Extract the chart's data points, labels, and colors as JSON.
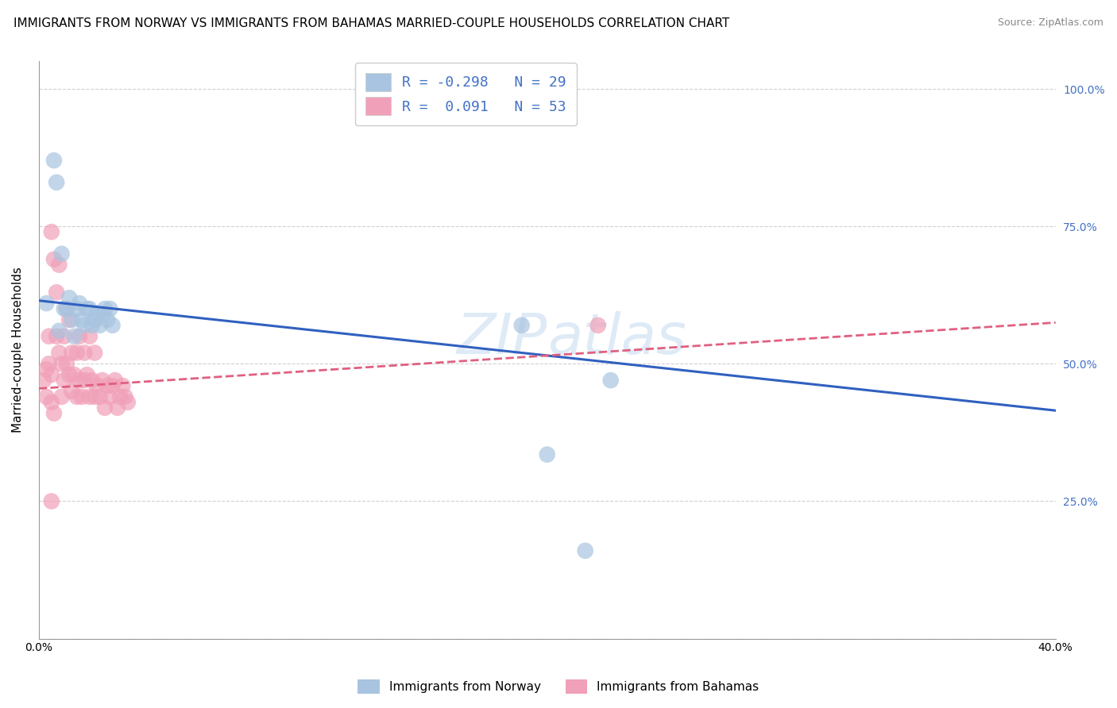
{
  "title": "IMMIGRANTS FROM NORWAY VS IMMIGRANTS FROM BAHAMAS MARRIED-COUPLE HOUSEHOLDS CORRELATION CHART",
  "source": "Source: ZipAtlas.com",
  "ylabel": "Married-couple Households",
  "xlim": [
    0.0,
    0.4
  ],
  "ylim": [
    0.0,
    1.05
  ],
  "norway_color": "#a8c4e0",
  "bahamas_color": "#f0a0b8",
  "norway_line_color": "#3060c0",
  "bahamas_line_color": "#e06080",
  "norway_R": -0.298,
  "norway_N": 29,
  "bahamas_R": 0.091,
  "bahamas_N": 53,
  "norway_scatter_x": [
    0.003,
    0.006,
    0.007,
    0.008,
    0.009,
    0.01,
    0.011,
    0.012,
    0.013,
    0.014,
    0.015,
    0.016,
    0.017,
    0.018,
    0.019,
    0.02,
    0.021,
    0.022,
    0.023,
    0.024,
    0.025,
    0.026,
    0.027,
    0.028,
    0.029,
    0.19,
    0.2,
    0.215,
    0.225
  ],
  "norway_scatter_y": [
    0.61,
    0.87,
    0.83,
    0.56,
    0.7,
    0.6,
    0.6,
    0.62,
    0.58,
    0.55,
    0.6,
    0.61,
    0.58,
    0.57,
    0.6,
    0.6,
    0.57,
    0.58,
    0.59,
    0.57,
    0.59,
    0.6,
    0.58,
    0.6,
    0.57,
    0.57,
    0.335,
    0.16,
    0.47
  ],
  "bahamas_scatter_x": [
    0.002,
    0.003,
    0.003,
    0.004,
    0.004,
    0.005,
    0.005,
    0.005,
    0.006,
    0.006,
    0.007,
    0.007,
    0.008,
    0.008,
    0.009,
    0.009,
    0.01,
    0.01,
    0.011,
    0.011,
    0.012,
    0.012,
    0.013,
    0.013,
    0.014,
    0.015,
    0.015,
    0.016,
    0.016,
    0.017,
    0.018,
    0.018,
    0.019,
    0.02,
    0.02,
    0.021,
    0.022,
    0.022,
    0.023,
    0.024,
    0.025,
    0.026,
    0.027,
    0.028,
    0.029,
    0.03,
    0.031,
    0.032,
    0.033,
    0.034,
    0.035,
    0.22,
    0.005
  ],
  "bahamas_scatter_y": [
    0.47,
    0.44,
    0.49,
    0.5,
    0.55,
    0.43,
    0.48,
    0.74,
    0.41,
    0.69,
    0.55,
    0.63,
    0.52,
    0.68,
    0.44,
    0.5,
    0.47,
    0.55,
    0.5,
    0.6,
    0.48,
    0.58,
    0.45,
    0.52,
    0.48,
    0.44,
    0.52,
    0.47,
    0.55,
    0.44,
    0.47,
    0.52,
    0.48,
    0.44,
    0.55,
    0.47,
    0.44,
    0.52,
    0.46,
    0.44,
    0.47,
    0.42,
    0.46,
    0.44,
    0.46,
    0.47,
    0.42,
    0.44,
    0.46,
    0.44,
    0.43,
    0.57,
    0.25
  ],
  "watermark": "ZIPatlas",
  "background_color": "#ffffff",
  "grid_color": "#d0d0d0",
  "title_fontsize": 11,
  "axis_label_fontsize": 11,
  "tick_fontsize": 10,
  "right_tick_color": "#4472c4",
  "legend_text_color": "#4472c4"
}
